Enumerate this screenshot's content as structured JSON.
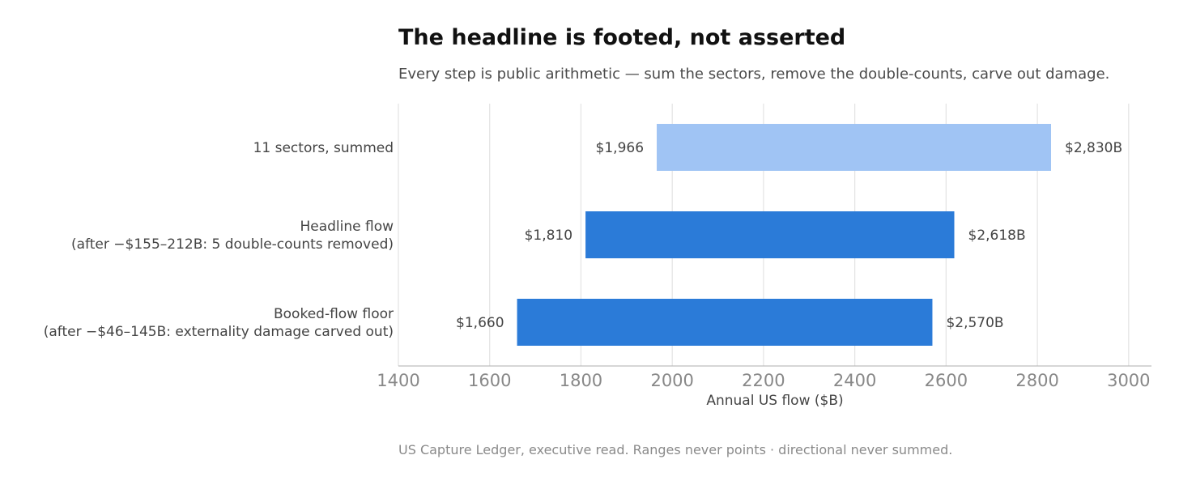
{
  "chart_data": {
    "type": "bar",
    "orientation": "horizontal-range",
    "title": "The headline is footed, not asserted",
    "subtitle": "Every step is public arithmetic — sum the sectors, remove the double-counts, carve out damage.",
    "xlabel": "Annual US flow  ($B)",
    "ylabel": "",
    "xlim": [
      1400,
      3050
    ],
    "xticks": [
      1400,
      1600,
      1800,
      2000,
      2200,
      2400,
      2600,
      2800,
      3000
    ],
    "grid": true,
    "categories": [
      {
        "lines": [
          "11 sectors, summed"
        ],
        "low": 1966,
        "high": 2830,
        "low_label": "$1,966",
        "high_label": "$2,830B",
        "color": "#a0c4f4"
      },
      {
        "lines": [
          "Headline flow",
          "(after −$155–212B: 5 double-counts removed)"
        ],
        "low": 1810,
        "high": 2618,
        "low_label": "$1,810",
        "high_label": "$2,618B",
        "color": "#2b7bd8"
      },
      {
        "lines": [
          "Booked-flow floor",
          "(after −$46–145B: externality damage carved out)"
        ],
        "low": 1660,
        "high": 2570,
        "low_label": "$1,660",
        "high_label": "$2,570B",
        "color": "#2b7bd8"
      }
    ],
    "footer": "US Capture Ledger, executive read. Ranges never points · directional never summed."
  }
}
